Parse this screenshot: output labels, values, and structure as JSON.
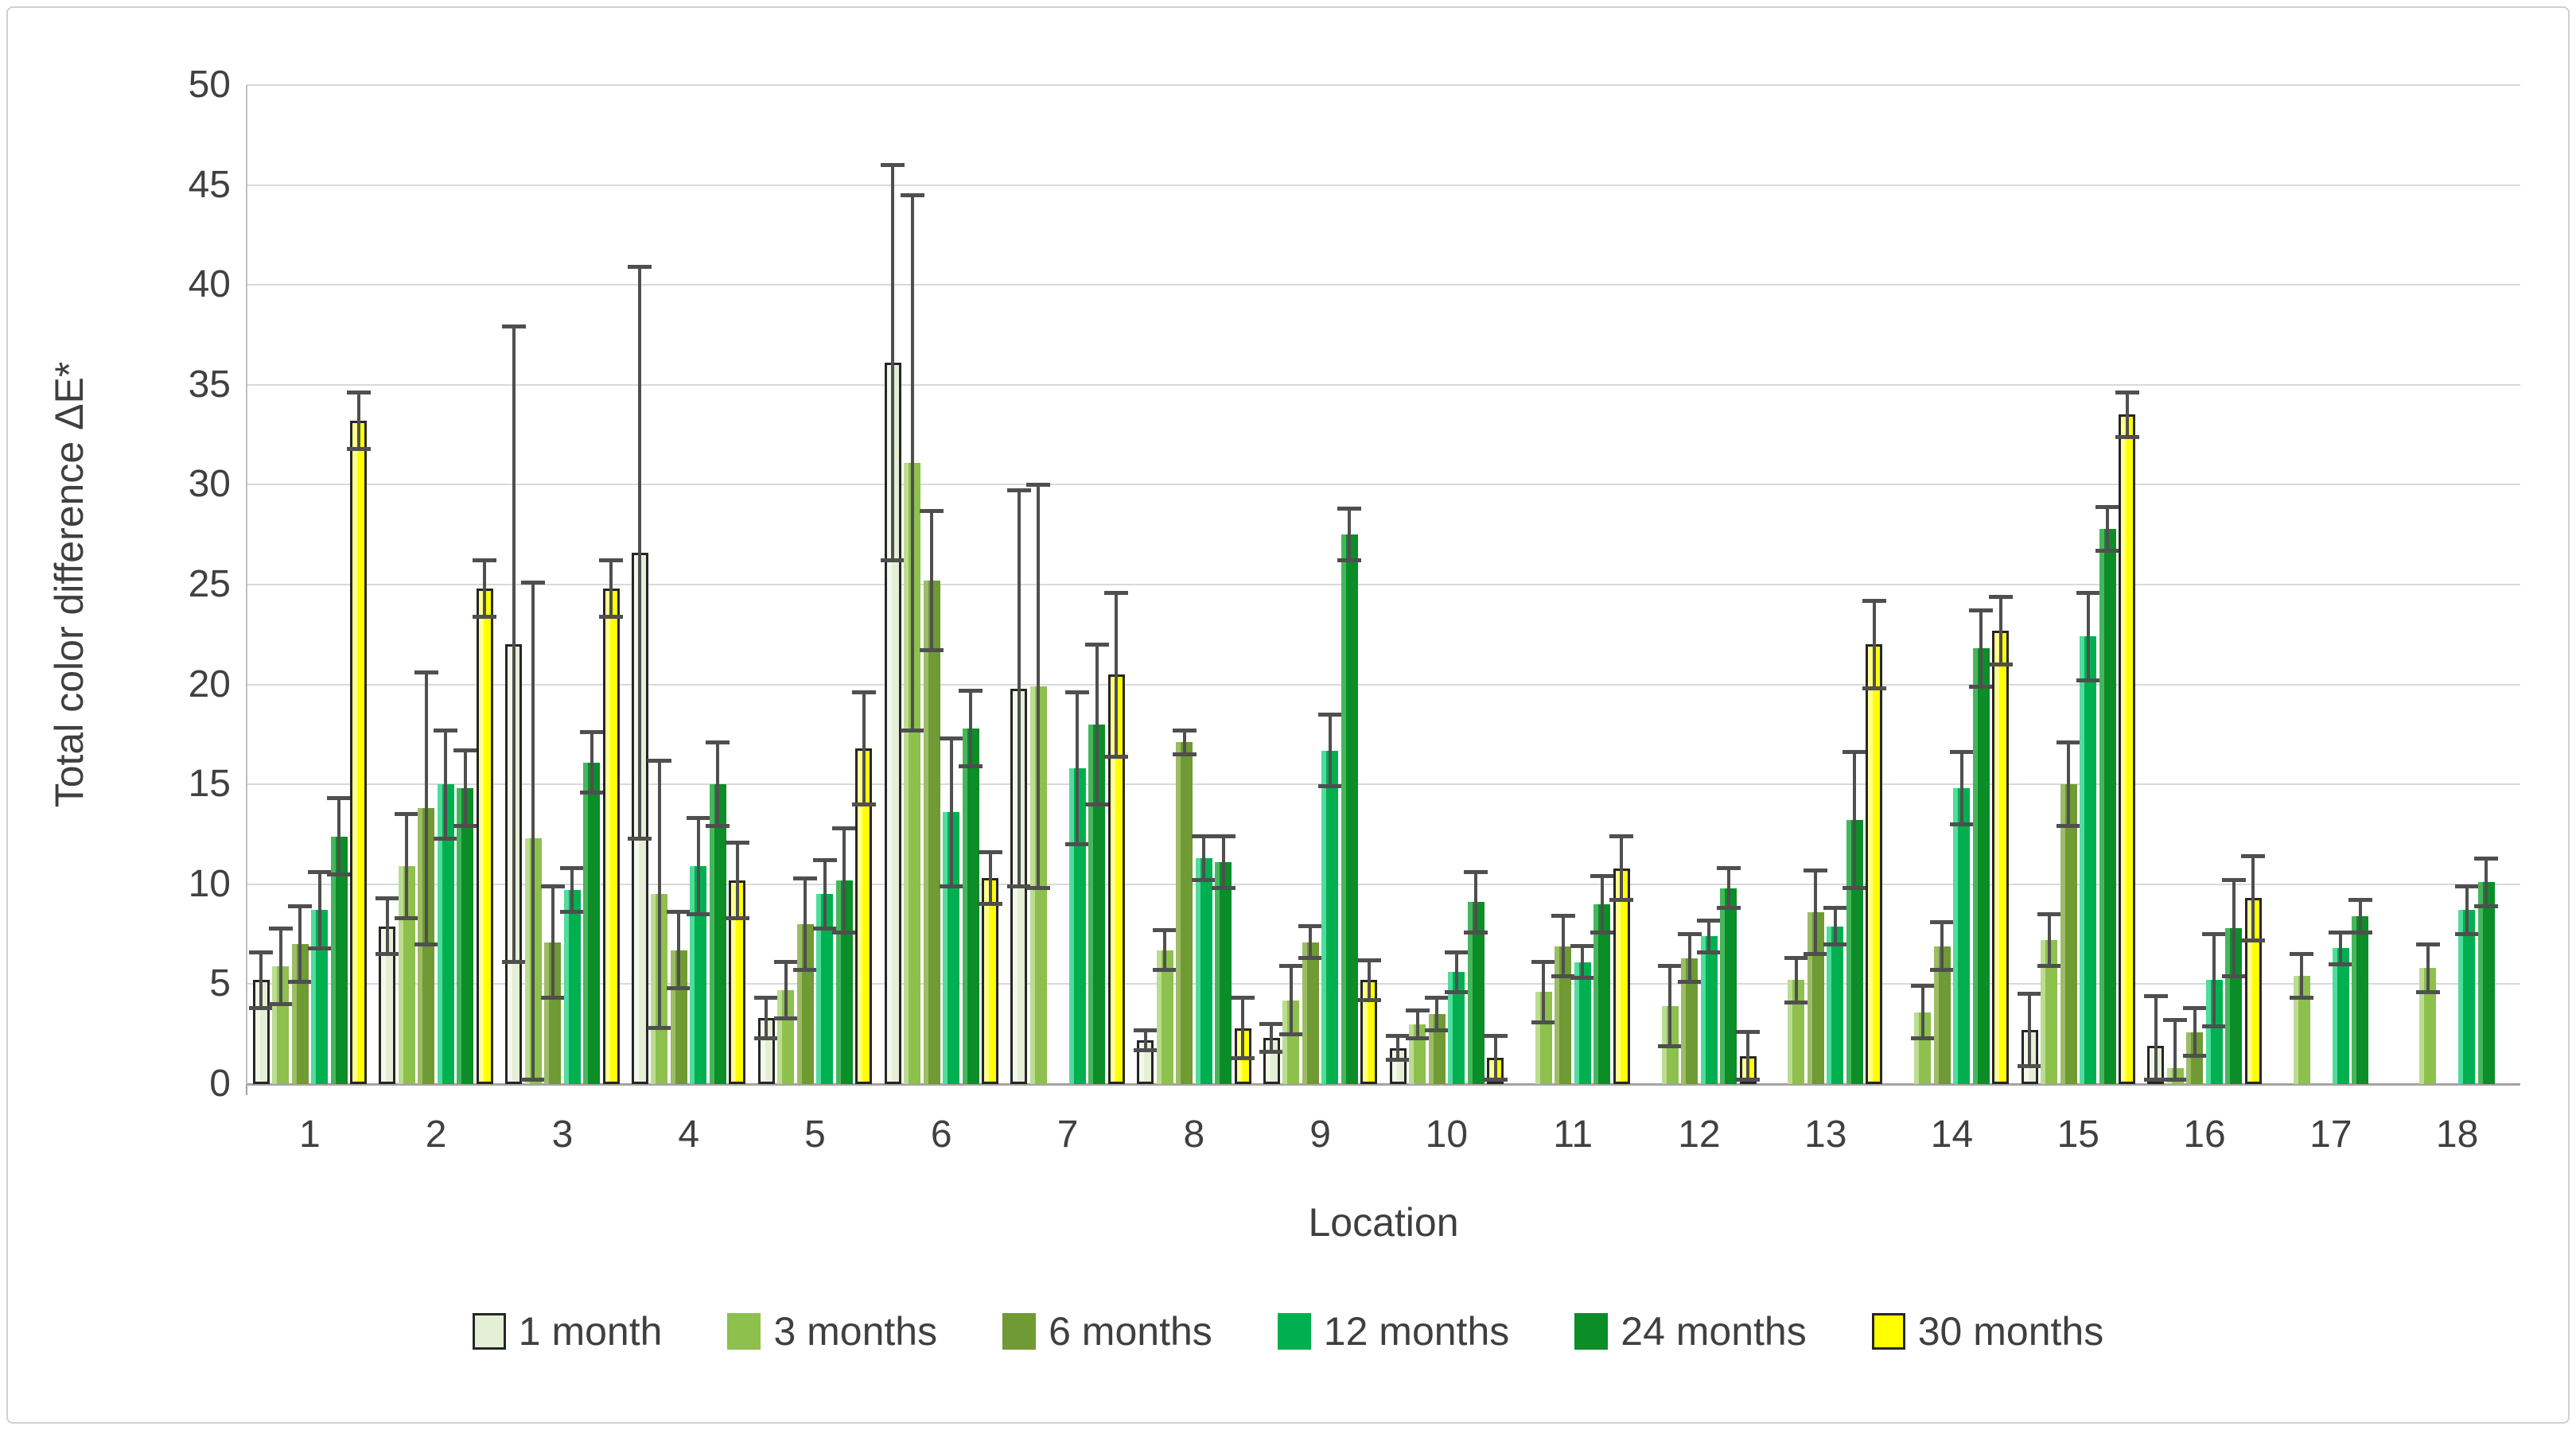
{
  "figure": {
    "background": "#ffffff",
    "frame_border_color": "#cdd0d3"
  },
  "chart_data": {
    "type": "bar",
    "title": "",
    "xlabel": "Location",
    "ylabel": "Total color difference ΔE*",
    "ylim": [
      0,
      50
    ],
    "ytick_step": 5,
    "grid": true,
    "legend_position": "bottom",
    "error_bars": true,
    "error_bar_color": "#4f4f4f",
    "gridline_color": "#d9d9d9",
    "axis_line_color": "#a3a3a3",
    "tick_label_color": "#404040",
    "categories": [
      "1",
      "2",
      "3",
      "4",
      "5",
      "6",
      "7",
      "8",
      "9",
      "10",
      "11",
      "12",
      "13",
      "14",
      "15",
      "16",
      "17",
      "18"
    ],
    "series": [
      {
        "name": "1 month",
        "fill": "#e5efd6",
        "edge_highlight": "#f3f9ea",
        "outline": "#262626",
        "values": [
          5.2,
          7.9,
          22.0,
          26.6,
          3.3,
          36.1,
          19.8,
          2.2,
          2.3,
          1.8,
          null,
          null,
          null,
          null,
          2.7,
          1.9,
          null,
          null
        ],
        "errors": [
          1.5,
          1.5,
          16.0,
          14.4,
          1.1,
          10.0,
          10.0,
          0.6,
          0.8,
          0.7,
          null,
          null,
          null,
          null,
          1.9,
          2.6,
          null,
          null
        ]
      },
      {
        "name": "3 months",
        "fill": "#8dc04d",
        "edge_highlight": "#bcdc92",
        "outline": null,
        "values": [
          5.9,
          10.9,
          12.3,
          9.5,
          4.7,
          31.1,
          19.9,
          6.7,
          4.2,
          3.0,
          4.6,
          3.9,
          5.2,
          3.6,
          7.2,
          0.8,
          5.4,
          5.8
        ],
        "errors": [
          2.0,
          2.7,
          12.9,
          6.8,
          1.5,
          13.5,
          10.2,
          1.1,
          1.8,
          0.8,
          1.6,
          2.1,
          1.2,
          1.4,
          1.4,
          2.5,
          1.2,
          1.3
        ]
      },
      {
        "name": "6 months",
        "fill": "#6f9a34",
        "edge_highlight": "#9cbc67",
        "outline": null,
        "values": [
          7.0,
          13.8,
          7.1,
          6.7,
          8.0,
          25.2,
          null,
          17.1,
          7.1,
          3.5,
          6.9,
          6.3,
          8.6,
          6.9,
          15.0,
          2.6,
          null,
          null
        ],
        "errors": [
          2.0,
          6.9,
          2.9,
          2.0,
          2.4,
          3.6,
          null,
          0.7,
          0.9,
          0.9,
          1.6,
          1.3,
          2.2,
          1.3,
          2.2,
          1.3,
          null,
          null
        ]
      },
      {
        "name": "12 months",
        "fill": "#00b050",
        "edge_highlight": "#4fdc9c",
        "outline": null,
        "values": [
          8.7,
          15.0,
          9.7,
          10.9,
          9.5,
          13.6,
          15.8,
          11.3,
          16.7,
          5.6,
          6.1,
          7.4,
          7.9,
          14.8,
          22.4,
          5.2,
          6.8,
          8.7
        ],
        "errors": [
          2.0,
          2.8,
          1.2,
          2.5,
          1.8,
          3.8,
          3.9,
          1.2,
          1.9,
          1.1,
          0.9,
          0.9,
          1.0,
          1.9,
          2.3,
          2.4,
          0.9,
          1.3
        ]
      },
      {
        "name": "24 months",
        "fill": "#0b8d27",
        "edge_highlight": "#46b65d",
        "outline": null,
        "values": [
          12.4,
          14.8,
          16.1,
          15.0,
          10.2,
          17.8,
          18.0,
          11.1,
          27.5,
          9.1,
          9.0,
          9.8,
          13.2,
          21.8,
          27.8,
          7.8,
          8.4,
          10.1
        ],
        "errors": [
          2.0,
          2.0,
          1.6,
          2.2,
          2.7,
          2.0,
          4.1,
          1.4,
          1.4,
          1.6,
          1.5,
          1.1,
          3.5,
          2.0,
          1.2,
          2.5,
          0.9,
          1.3
        ]
      },
      {
        "name": "30 months",
        "fill": "#ffff00",
        "edge_highlight": "#ffff8e",
        "outline": "#262626",
        "values": [
          33.2,
          24.8,
          24.8,
          10.2,
          16.8,
          10.3,
          20.5,
          2.8,
          5.2,
          1.3,
          10.8,
          1.4,
          22.0,
          22.7,
          33.5,
          9.3,
          null,
          null
        ],
        "errors": [
          1.5,
          1.5,
          1.5,
          2.0,
          2.9,
          1.4,
          4.2,
          1.6,
          1.1,
          1.2,
          1.7,
          1.3,
          2.3,
          1.8,
          1.2,
          2.2,
          null,
          null
        ]
      }
    ]
  }
}
